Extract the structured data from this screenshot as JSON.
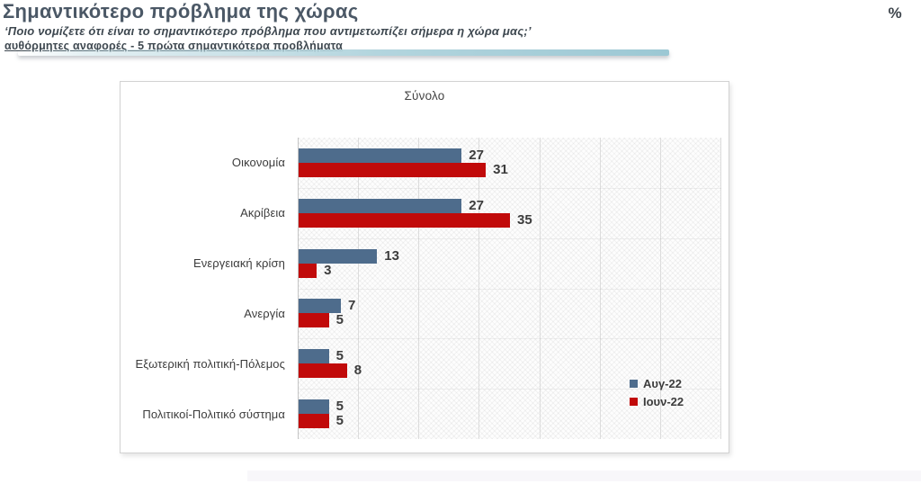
{
  "header": {
    "title": "Σημαντικότερο πρόβλημα της χώρας",
    "subtitle": "‘Ποιο νομίζετε ότι  είναι το σημαντικότερο πρόβλημα που αντιμετωπίζει σήμερα η χώρα μας;’",
    "note": "αυθόρμητες αναφορές - 5 πρώτα σημαντικότερα προβλήματα",
    "unit_label": "%"
  },
  "chart_data": {
    "type": "bar",
    "orientation": "horizontal",
    "title": "Σύνολο",
    "categories": [
      "Οικονομία",
      "Ακρίβεια",
      "Ενεργειακή κρίση",
      "Ανεργία",
      "Εξωτερική πολιτική-Πόλεμος",
      "Πολιτικοί-Πολιτικό σύστημα"
    ],
    "series": [
      {
        "name": "Αυγ-22",
        "color": "#4e6c8c",
        "values": [
          27,
          27,
          13,
          7,
          5,
          5
        ]
      },
      {
        "name": "Ιουν-22",
        "color": "#c10a0a",
        "values": [
          31,
          35,
          3,
          5,
          8,
          5
        ]
      }
    ],
    "xlim": [
      0,
      70
    ],
    "gridline_step": 10,
    "grid": true,
    "legend_position": "bottom-right",
    "value_labels": true
  },
  "colors": {
    "accent_teal": "#b3d5de",
    "accent_teal_deep": "#9cc8d4",
    "bar_blue": "#4e6c8c",
    "bar_red": "#c10a0a",
    "title_text": "#4b5866"
  }
}
